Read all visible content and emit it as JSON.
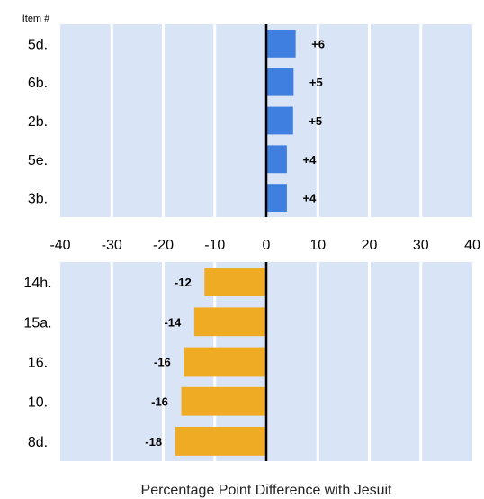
{
  "chart_data": [
    {
      "type": "bar",
      "orientation": "horizontal",
      "item_header": "Item #",
      "categories": [
        "5d.",
        "6b.",
        "2b.",
        "5e.",
        "3b."
      ],
      "values": [
        5.7,
        5.3,
        5.2,
        4.0,
        4.0
      ],
      "data_labels": [
        "+6",
        "+5",
        "+5",
        "+4",
        "+4"
      ],
      "bar_color": "#3f7fe0",
      "xlim": [
        -40,
        40
      ],
      "xticks": [
        "-40",
        "-30",
        "-20",
        "-10",
        "0",
        "10",
        "20",
        "30",
        "40"
      ],
      "xtick_values": [
        -40,
        -30,
        -20,
        -10,
        0,
        10,
        20,
        30,
        40
      ]
    },
    {
      "type": "bar",
      "orientation": "horizontal",
      "categories": [
        "14h.",
        "15a.",
        "16.",
        "10.",
        "8d."
      ],
      "values": [
        -12,
        -14,
        -16,
        -16.5,
        -17.7
      ],
      "data_labels": [
        "-12",
        "-14",
        "-16",
        "-16",
        "-18"
      ],
      "bar_color": "#f0ab25",
      "xlim": [
        -40,
        40
      ]
    }
  ],
  "xlabel": "Percentage Point Difference with Jesuit",
  "colors": {
    "panel_band": "#d9e4f6",
    "grid": "#ffffff",
    "zero_line": "#000000"
  }
}
